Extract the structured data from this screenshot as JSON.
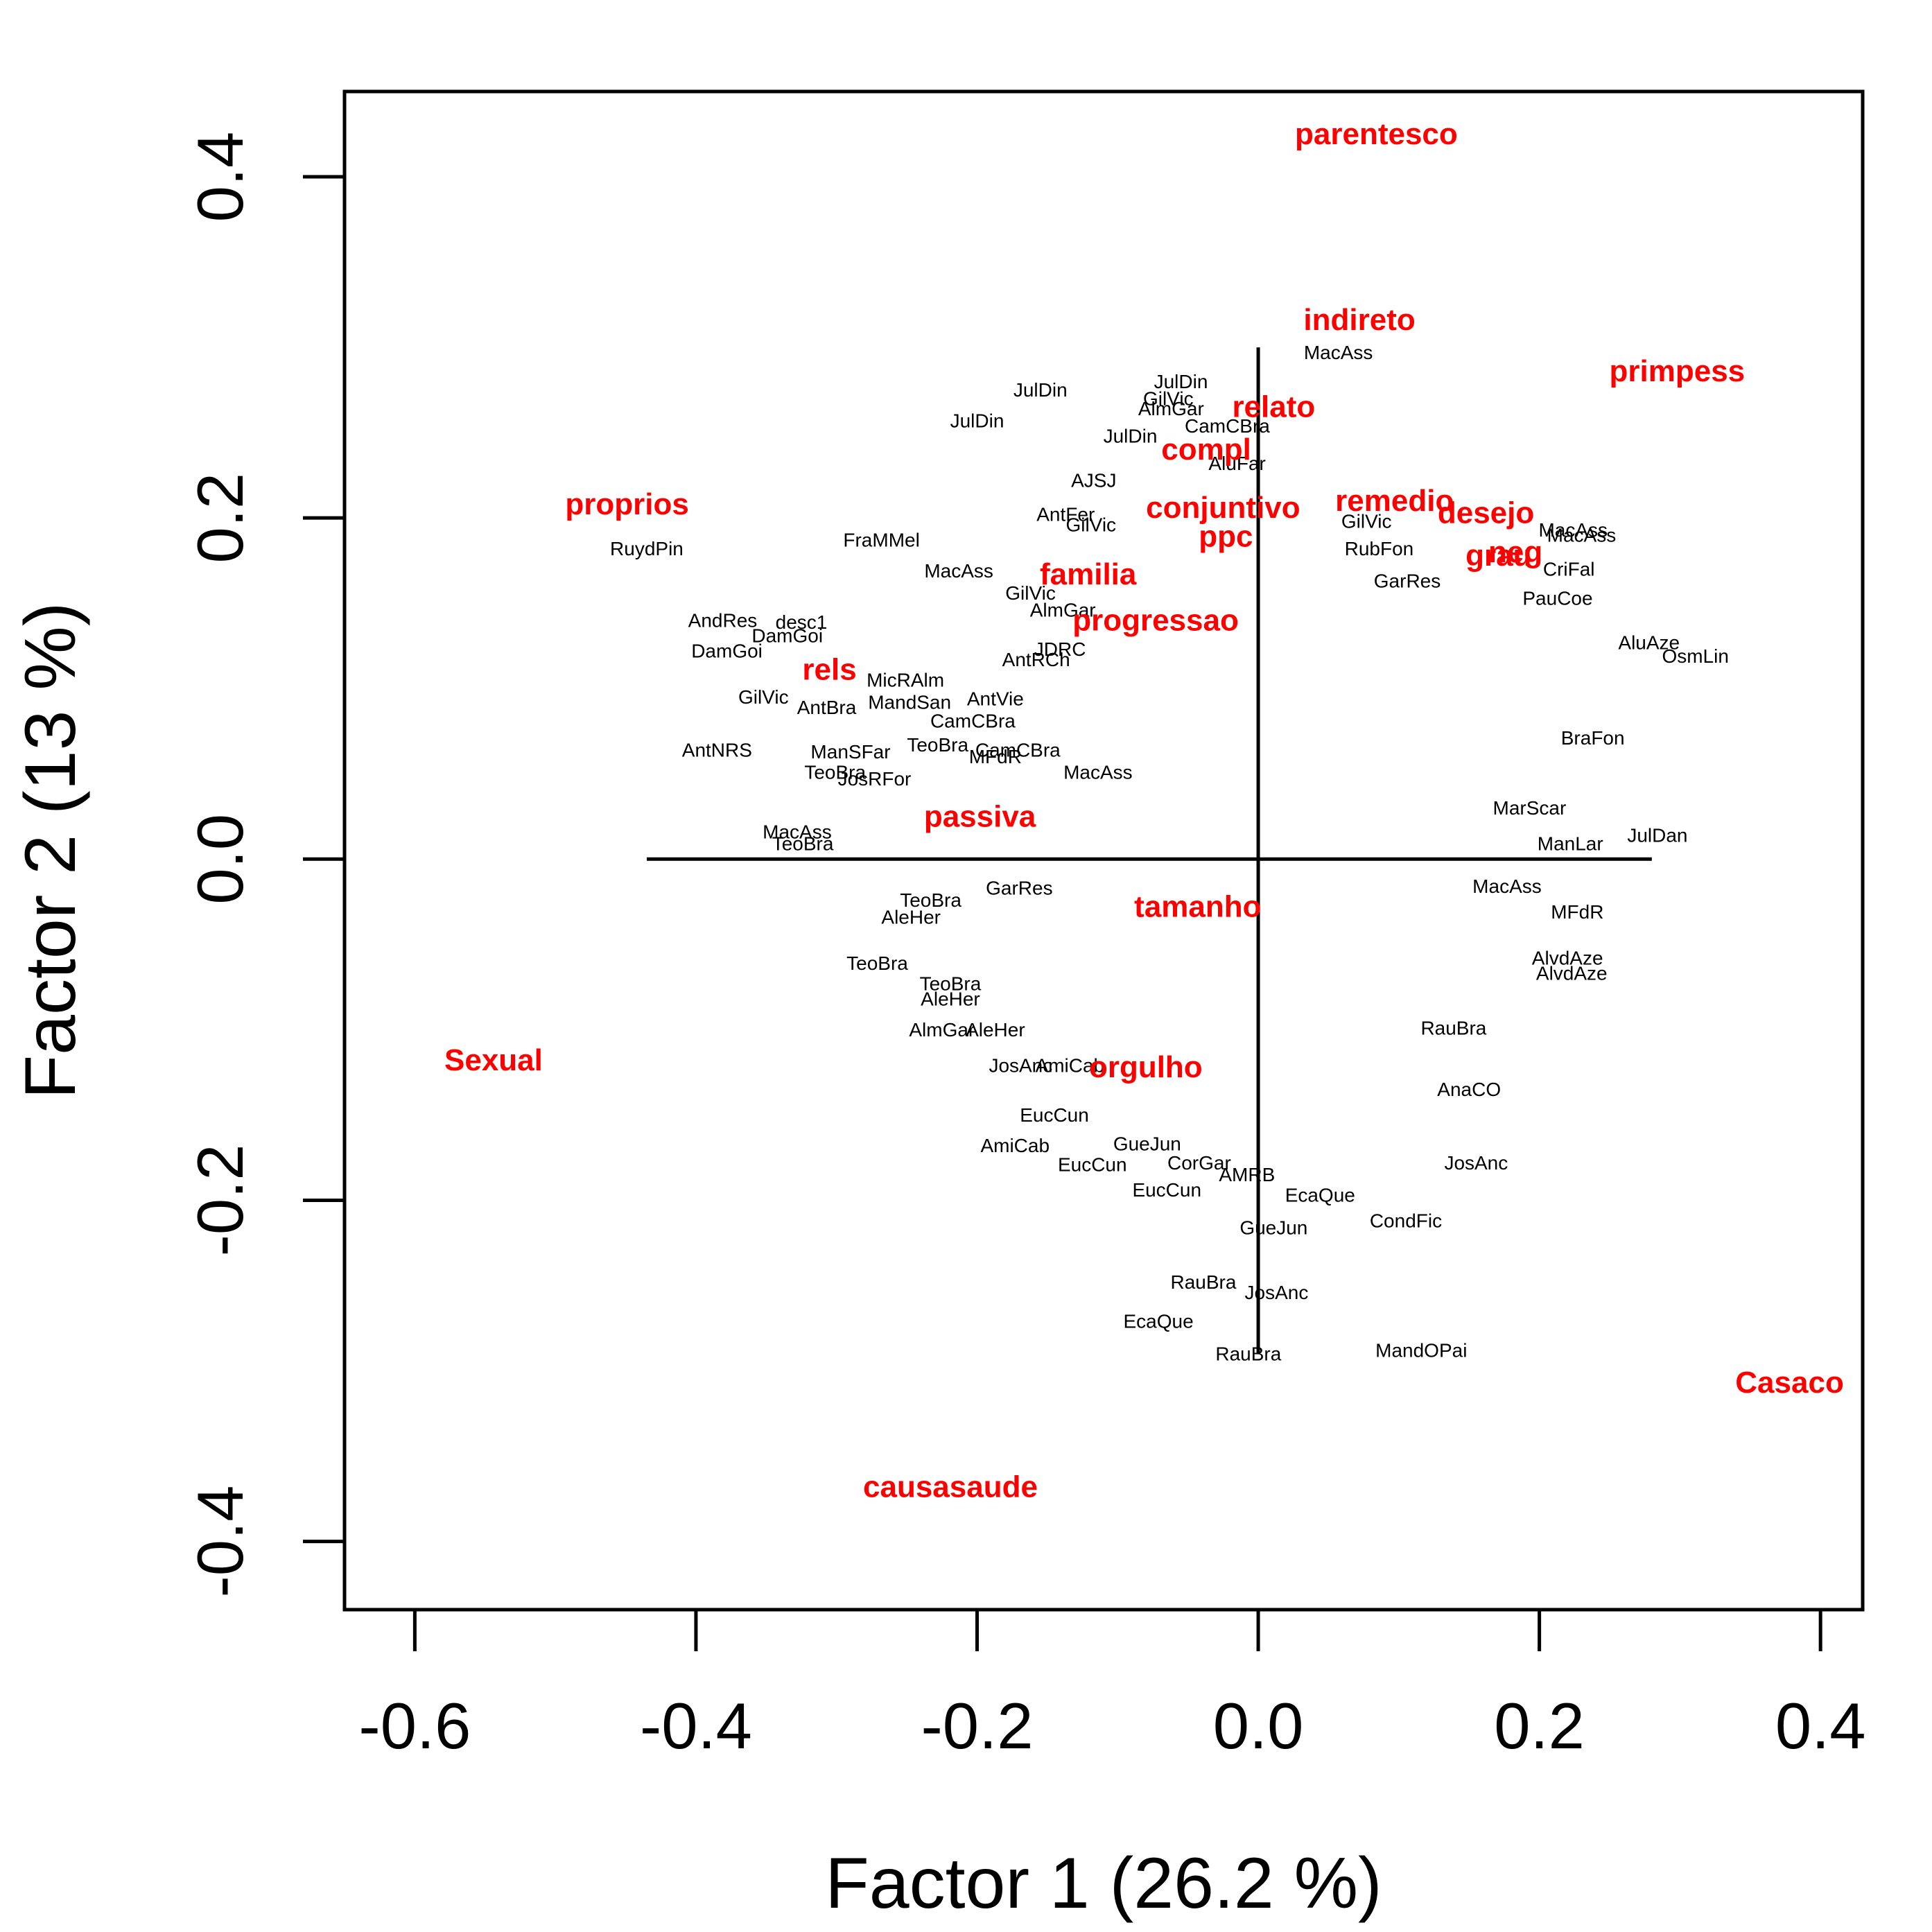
{
  "chart_data": {
    "type": "scatter",
    "title": "",
    "xlabel": "Factor 1  (26.2 %)",
    "ylabel": "Factor 2  (13 %)",
    "xlim": [
      -0.65,
      0.43
    ],
    "ylim": [
      -0.44,
      0.45
    ],
    "xticks": [
      -0.6,
      -0.4,
      -0.2,
      0.0,
      0.2,
      0.4
    ],
    "xtick_labels": [
      "-0.6",
      "-0.4",
      "-0.2",
      "0.0",
      "0.2",
      "0.4"
    ],
    "yticks": [
      -0.4,
      -0.2,
      0.0,
      0.2,
      0.4
    ],
    "ytick_labels": [
      "-0.4",
      "-0.2",
      "0.0",
      "0.2",
      "0.4"
    ],
    "grid": false,
    "legend": "none",
    "colors": {
      "variables": "#ff0000",
      "observations": "#000000",
      "axes": "#000000"
    },
    "reference_lines": {
      "horizontal": {
        "y": 0.0,
        "x_from": -0.435,
        "x_to": 0.28
      },
      "vertical": {
        "x": 0.0,
        "y_from": -0.29,
        "y_to": 0.3
      }
    },
    "variables": [
      {
        "label": "parentesco",
        "x": 0.084,
        "y": 0.425
      },
      {
        "label": "indireto",
        "x": 0.072,
        "y": 0.316
      },
      {
        "label": "primpess",
        "x": 0.298,
        "y": 0.286
      },
      {
        "label": "relato",
        "x": 0.011,
        "y": 0.265
      },
      {
        "label": "compl",
        "x": -0.037,
        "y": 0.24
      },
      {
        "label": "proprios",
        "x": -0.449,
        "y": 0.208
      },
      {
        "label": "remedio",
        "x": 0.097,
        "y": 0.21
      },
      {
        "label": "conjuntivo",
        "x": -0.025,
        "y": 0.206
      },
      {
        "label": "desejo",
        "x": 0.162,
        "y": 0.203
      },
      {
        "label": "ppc",
        "x": -0.023,
        "y": 0.189
      },
      {
        "label": "neg",
        "x": 0.183,
        "y": 0.18
      },
      {
        "label": "grau",
        "x": 0.171,
        "y": 0.178
      },
      {
        "label": "familia",
        "x": -0.121,
        "y": 0.167
      },
      {
        "label": "progressao",
        "x": -0.073,
        "y": 0.14
      },
      {
        "label": "rels",
        "x": -0.305,
        "y": 0.111
      },
      {
        "label": "passiva",
        "x": -0.198,
        "y": 0.025
      },
      {
        "label": "tamanho",
        "x": -0.043,
        "y": -0.028
      },
      {
        "label": "Sexual",
        "x": -0.544,
        "y": -0.118
      },
      {
        "label": "orgulho",
        "x": -0.08,
        "y": -0.122
      },
      {
        "label": "Casaco",
        "x": 0.378,
        "y": -0.307
      },
      {
        "label": "causasaude",
        "x": -0.219,
        "y": -0.368
      }
    ],
    "observations": [
      {
        "label": "MacAss",
        "x": 0.057,
        "y": 0.297
      },
      {
        "label": "JulDin",
        "x": -0.155,
        "y": 0.275
      },
      {
        "label": "JulDin",
        "x": -0.055,
        "y": 0.28
      },
      {
        "label": "GilVic",
        "x": -0.064,
        "y": 0.27
      },
      {
        "label": "AlmGar",
        "x": -0.062,
        "y": 0.264
      },
      {
        "label": "JulDin",
        "x": -0.2,
        "y": 0.257
      },
      {
        "label": "CamCBra",
        "x": -0.022,
        "y": 0.254
      },
      {
        "label": "JulDin",
        "x": -0.091,
        "y": 0.248
      },
      {
        "label": "AluFar",
        "x": -0.015,
        "y": 0.232
      },
      {
        "label": "AJSJ",
        "x": -0.117,
        "y": 0.222
      },
      {
        "label": "AntFer",
        "x": -0.137,
        "y": 0.202
      },
      {
        "label": "GilVic",
        "x": -0.119,
        "y": 0.196
      },
      {
        "label": "RuydPin",
        "x": -0.435,
        "y": 0.182
      },
      {
        "label": "FraMMel",
        "x": -0.268,
        "y": 0.187
      },
      {
        "label": "GilVic",
        "x": 0.077,
        "y": 0.198
      },
      {
        "label": "RubFon",
        "x": 0.086,
        "y": 0.182
      },
      {
        "label": "MacAss",
        "x": 0.224,
        "y": 0.193
      },
      {
        "label": "MacAss",
        "x": 0.23,
        "y": 0.19
      },
      {
        "label": "MacAss",
        "x": -0.213,
        "y": 0.169
      },
      {
        "label": "CriFal",
        "x": 0.221,
        "y": 0.17
      },
      {
        "label": "GilVic",
        "x": -0.162,
        "y": 0.156
      },
      {
        "label": "AlmGar",
        "x": -0.139,
        "y": 0.146
      },
      {
        "label": "GarRes",
        "x": 0.106,
        "y": 0.163
      },
      {
        "label": "PauCoe",
        "x": 0.213,
        "y": 0.153
      },
      {
        "label": "AndRes",
        "x": -0.381,
        "y": 0.14
      },
      {
        "label": "desc1",
        "x": -0.325,
        "y": 0.139
      },
      {
        "label": "DamGoi",
        "x": -0.335,
        "y": 0.131
      },
      {
        "label": "DamGoi",
        "x": -0.378,
        "y": 0.122
      },
      {
        "label": "JDRC",
        "x": -0.141,
        "y": 0.123
      },
      {
        "label": "AntRCh",
        "x": -0.158,
        "y": 0.117
      },
      {
        "label": "AluAze",
        "x": 0.278,
        "y": 0.127
      },
      {
        "label": "OsmLin",
        "x": 0.311,
        "y": 0.119
      },
      {
        "label": "GilVic",
        "x": -0.352,
        "y": 0.095
      },
      {
        "label": "AntBra",
        "x": -0.307,
        "y": 0.089
      },
      {
        "label": "MandSan",
        "x": -0.248,
        "y": 0.092
      },
      {
        "label": "MicRAlm",
        "x": -0.251,
        "y": 0.105
      },
      {
        "label": "AntVie",
        "x": -0.187,
        "y": 0.094
      },
      {
        "label": "CamCBra",
        "x": -0.203,
        "y": 0.081
      },
      {
        "label": "BraFon",
        "x": 0.238,
        "y": 0.071
      },
      {
        "label": "AntNRS",
        "x": -0.385,
        "y": 0.064
      },
      {
        "label": "ManSFar",
        "x": -0.29,
        "y": 0.063
      },
      {
        "label": "TeoBra",
        "x": -0.228,
        "y": 0.067
      },
      {
        "label": "CamCBra",
        "x": -0.171,
        "y": 0.064
      },
      {
        "label": "TeoBra",
        "x": -0.301,
        "y": 0.051
      },
      {
        "label": "JosRFor",
        "x": -0.273,
        "y": 0.047
      },
      {
        "label": "MFdR",
        "x": -0.187,
        "y": 0.06
      },
      {
        "label": "MacAss",
        "x": -0.114,
        "y": 0.051
      },
      {
        "label": "MacAss",
        "x": -0.328,
        "y": 0.016
      },
      {
        "label": "TeoBra",
        "x": -0.324,
        "y": 0.009
      },
      {
        "label": "JulDan",
        "x": 0.284,
        "y": 0.014
      },
      {
        "label": "ManLar",
        "x": 0.222,
        "y": 0.009
      },
      {
        "label": "MarScar",
        "x": 0.193,
        "y": 0.03
      },
      {
        "label": "GarRes",
        "x": -0.17,
        "y": -0.017
      },
      {
        "label": "TeoBra",
        "x": -0.233,
        "y": -0.024
      },
      {
        "label": "AleHer",
        "x": -0.247,
        "y": -0.034
      },
      {
        "label": "MacAss",
        "x": 0.177,
        "y": -0.016
      },
      {
        "label": "MFdR",
        "x": 0.227,
        "y": -0.031
      },
      {
        "label": "TeoBra",
        "x": -0.271,
        "y": -0.061
      },
      {
        "label": "TeoBra",
        "x": -0.219,
        "y": -0.073
      },
      {
        "label": "AleHer",
        "x": -0.219,
        "y": -0.082
      },
      {
        "label": "AlvdAze",
        "x": 0.22,
        "y": -0.058
      },
      {
        "label": "AlvdAze",
        "x": 0.223,
        "y": -0.067
      },
      {
        "label": "AlmGar",
        "x": -0.225,
        "y": -0.1
      },
      {
        "label": "AleHer",
        "x": -0.187,
        "y": -0.1
      },
      {
        "label": "RauBra",
        "x": 0.139,
        "y": -0.099
      },
      {
        "label": "JosAnc",
        "x": -0.169,
        "y": -0.121
      },
      {
        "label": "AmiCab",
        "x": -0.134,
        "y": -0.121
      },
      {
        "label": "AnaCO",
        "x": 0.15,
        "y": -0.135
      },
      {
        "label": "EucCun",
        "x": -0.145,
        "y": -0.15
      },
      {
        "label": "AmiCab",
        "x": -0.173,
        "y": -0.168
      },
      {
        "label": "EucCun",
        "x": -0.118,
        "y": -0.179
      },
      {
        "label": "GueJun",
        "x": -0.079,
        "y": -0.167
      },
      {
        "label": "CorGar",
        "x": -0.042,
        "y": -0.178
      },
      {
        "label": "JosAnc",
        "x": 0.155,
        "y": -0.178
      },
      {
        "label": "AMRB",
        "x": -0.008,
        "y": -0.185
      },
      {
        "label": "EucCun",
        "x": -0.065,
        "y": -0.194
      },
      {
        "label": "EcaQue",
        "x": 0.044,
        "y": -0.197
      },
      {
        "label": "CondFic",
        "x": 0.105,
        "y": -0.212
      },
      {
        "label": "GueJun",
        "x": 0.011,
        "y": -0.216
      },
      {
        "label": "RauBra",
        "x": -0.039,
        "y": -0.248
      },
      {
        "label": "JosAnc",
        "x": 0.013,
        "y": -0.254
      },
      {
        "label": "EcaQue",
        "x": -0.071,
        "y": -0.271
      },
      {
        "label": "RauBra",
        "x": -0.007,
        "y": -0.29
      },
      {
        "label": "MandOPai",
        "x": 0.116,
        "y": -0.288
      }
    ]
  }
}
